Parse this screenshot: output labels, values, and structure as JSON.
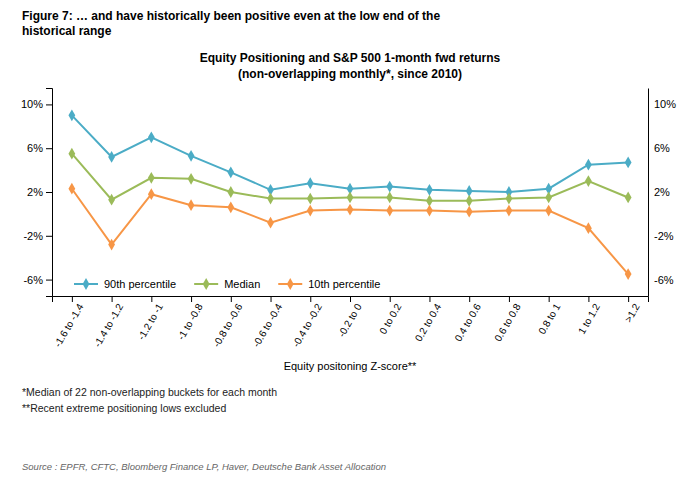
{
  "chart_data": {
    "type": "line",
    "title": "Equity Positioning and S&P 500 1-month fwd returns",
    "subtitle": "(non-overlapping monthly*, since 2010)",
    "annotations": [
      "Figure 7: … and have historically been positive even at the low end of the\nhistorical range",
      "*Median of 22 non-overlapping buckets for each month",
      "**Recent extreme positioning lows excluded",
      "Source : EPFR, CFTC, Bloomberg Finance LP, Haver, Deutsche Bank Asset Allocation"
    ],
    "xlabel": "Equity positoning Z-score**",
    "categories": [
      "-1.6 to -1.4",
      "-1.4 to -1.2",
      "-1.2 to -1",
      "-1 to -0.8",
      "-0.8 to -0.6",
      "-0.6 to -0.4",
      "-0.4 to -0.2",
      "-0.2 to 0",
      "0 to 0.2",
      "0.2 to 0.4",
      "0.4 to 0.6",
      "0.6 to 0.8",
      "0.8 to 1",
      "1 to 1.2",
      ">1.2"
    ],
    "series": [
      {
        "name": "90th percentile",
        "color": "#4BACC6",
        "marker": "diamond",
        "values": [
          9.0,
          5.2,
          7.0,
          5.3,
          3.8,
          2.2,
          2.8,
          2.3,
          2.5,
          2.2,
          2.1,
          2.0,
          2.3,
          4.5,
          4.7
        ]
      },
      {
        "name": "Median",
        "color": "#9BBB59",
        "marker": "diamond",
        "values": [
          5.5,
          1.3,
          3.3,
          3.2,
          2.0,
          1.4,
          1.4,
          1.5,
          1.5,
          1.2,
          1.2,
          1.4,
          1.5,
          3.0,
          1.5
        ]
      },
      {
        "name": "10th percentile",
        "color": "#F79646",
        "marker": "diamond",
        "values": [
          2.3,
          -2.8,
          1.8,
          0.8,
          0.6,
          -0.8,
          0.3,
          0.4,
          0.3,
          0.3,
          0.2,
          0.3,
          0.3,
          -1.3,
          -5.5
        ]
      }
    ],
    "ylim": [
      -7.5,
      11.5
    ],
    "yticks": [
      {
        "value": -6,
        "label": "-6%"
      },
      {
        "value": -2,
        "label": "-2%"
      },
      {
        "value": 2,
        "label": "2%"
      },
      {
        "value": 6,
        "label": "6%"
      },
      {
        "value": 10,
        "label": "10%"
      }
    ],
    "grid": false,
    "legend": "lower left"
  }
}
